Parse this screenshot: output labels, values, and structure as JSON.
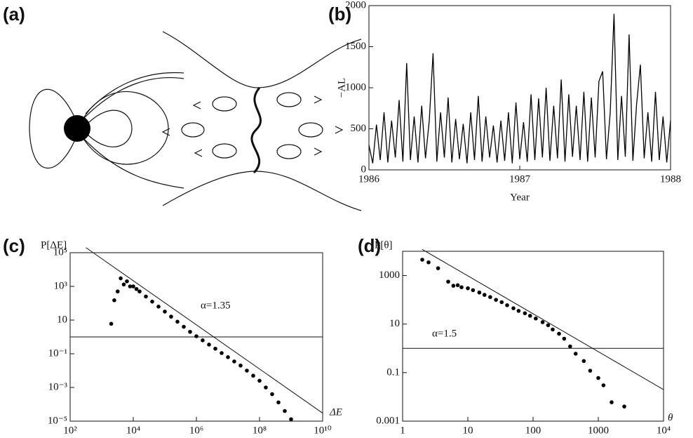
{
  "diagram": {
    "panel_label": "(a)"
  },
  "chart_data": [
    {
      "type": "line",
      "panel_label": "(b)",
      "xlabel": "Year",
      "ylabel": "−AL",
      "color": "#000000",
      "xlim": [
        1986,
        1988
      ],
      "ylim": [
        0,
        2000
      ],
      "xticks": [
        1986,
        1987,
        1988
      ],
      "yticks": [
        0,
        500,
        1000,
        1500,
        2000
      ],
      "x": [
        1986,
        1986.025,
        1986.05,
        1986.075,
        1986.1,
        1986.125,
        1986.15,
        1986.175,
        1986.2,
        1986.225,
        1986.25,
        1986.275,
        1986.3,
        1986.325,
        1986.35,
        1986.375,
        1986.4,
        1986.425,
        1986.45,
        1986.475,
        1986.5,
        1986.525,
        1986.55,
        1986.575,
        1986.6,
        1986.625,
        1986.65,
        1986.675,
        1986.7,
        1986.725,
        1986.75,
        1986.775,
        1986.8,
        1986.825,
        1986.85,
        1986.875,
        1986.9,
        1986.925,
        1986.95,
        1986.975,
        1987,
        1987.025,
        1987.05,
        1987.075,
        1987.1,
        1987.125,
        1987.15,
        1987.175,
        1987.2,
        1987.225,
        1987.25,
        1987.275,
        1987.3,
        1987.325,
        1987.35,
        1987.375,
        1987.4,
        1987.425,
        1987.45,
        1987.475,
        1987.5,
        1987.525,
        1987.55,
        1987.575,
        1987.6,
        1987.625,
        1987.65,
        1987.675,
        1987.7,
        1987.725,
        1987.75,
        1987.775,
        1987.8,
        1987.825,
        1987.85,
        1987.875,
        1987.9,
        1987.925,
        1987.95,
        1987.975,
        1988
      ],
      "values": [
        300,
        80,
        550,
        120,
        700,
        90,
        600,
        150,
        850,
        100,
        1300,
        120,
        650,
        90,
        780,
        140,
        600,
        1420,
        100,
        700,
        150,
        880,
        90,
        620,
        130,
        560,
        80,
        700,
        120,
        900,
        100,
        650,
        150,
        540,
        90,
        600,
        110,
        700,
        80,
        820,
        130,
        580,
        100,
        920,
        120,
        870,
        150,
        1000,
        110,
        780,
        140,
        1100,
        100,
        920,
        160,
        780,
        120,
        950,
        100,
        880,
        150,
        1080,
        1200,
        130,
        700,
        1900,
        120,
        900,
        160,
        1650,
        110,
        800,
        1280,
        140,
        700,
        100,
        950,
        120,
        650,
        90,
        600
      ]
    },
    {
      "type": "scatter",
      "panel_label": "(c)",
      "xlabel": "ΔE",
      "ylabel": "P[ΔE]",
      "annotation": "α=1.35",
      "color": "#000000",
      "xscale": "log",
      "yscale": "log",
      "xlim": [
        100,
        10000000000.0
      ],
      "ylim": [
        1e-05,
        100000.0
      ],
      "xticks": [
        {
          "value": 100,
          "label": "10²"
        },
        {
          "value": 10000,
          "label": "10⁴"
        },
        {
          "value": 1000000,
          "label": "10⁶"
        },
        {
          "value": 100000000,
          "label": "10⁸"
        },
        {
          "value": 10000000000.0,
          "label": "10¹⁰"
        }
      ],
      "yticks": [
        {
          "value": 100000,
          "label": "10⁵"
        },
        {
          "value": 1000,
          "label": "10³"
        },
        10,
        {
          "value": 0.1,
          "label": "10⁻¹"
        },
        {
          "value": 0.001,
          "label": "10⁻³"
        },
        {
          "value": 1e-05,
          "label": "10⁻⁵"
        }
      ],
      "hline": 1,
      "fit_line": {
        "x": [
          316,
          10000000000.0
        ],
        "y": [
          200000,
          3e-05
        ]
      },
      "x": [
        2000,
        2500,
        3200,
        4000,
        5000,
        6300,
        7900,
        10000,
        12600,
        15800,
        25100,
        39800,
        63100,
        100000,
        158000,
        251000,
        398000,
        631000,
        1000000,
        1580000,
        2510000,
        3980000,
        6310000,
        10000000,
        15800000,
        25100000,
        39800000,
        63100000,
        100000000,
        158000000,
        251000000,
        398000000,
        631000000,
        1000000000
      ],
      "values": [
        6,
        150,
        500,
        3000,
        1300,
        2000,
        1000,
        1000,
        700,
        500,
        250,
        125,
        63,
        32,
        16,
        8,
        4,
        2,
        1.1,
        0.63,
        0.35,
        0.2,
        0.11,
        0.063,
        0.035,
        0.02,
        0.01,
        0.005,
        0.0025,
        0.001,
        0.0004,
        0.00013,
        4e-05,
        1.3e-05
      ]
    },
    {
      "type": "scatter",
      "panel_label": "(d)",
      "xlabel": "θ",
      "ylabel": "P[θ]",
      "annotation": "α=1.5",
      "color": "#000000",
      "xscale": "log",
      "yscale": "log",
      "xlim": [
        1,
        10000
      ],
      "ylim": [
        0.001,
        10000
      ],
      "xticks": [
        1,
        10,
        100,
        1000,
        {
          "value": 10000,
          "label": "10⁴"
        }
      ],
      "yticks": [
        0.001,
        0.1,
        10,
        1000
      ],
      "hline": 1,
      "fit_line": {
        "x": [
          2,
          10000
        ],
        "y": [
          12000,
          0.02
        ]
      },
      "x": [
        2,
        2.5,
        3.5,
        5,
        6,
        7,
        8,
        10,
        12,
        15,
        18,
        22,
        27,
        33,
        40,
        50,
        60,
        75,
        90,
        110,
        140,
        170,
        200,
        250,
        300,
        370,
        450,
        600,
        750,
        1000,
        1200,
        1600,
        2500
      ],
      "values": [
        4500,
        3500,
        2000,
        560,
        380,
        400,
        330,
        300,
        250,
        200,
        160,
        130,
        100,
        80,
        60,
        45,
        35,
        28,
        22,
        17,
        12,
        9,
        6,
        4,
        2.5,
        1.2,
        0.6,
        0.3,
        0.12,
        0.06,
        0.03,
        0.006,
        0.004
      ]
    }
  ]
}
